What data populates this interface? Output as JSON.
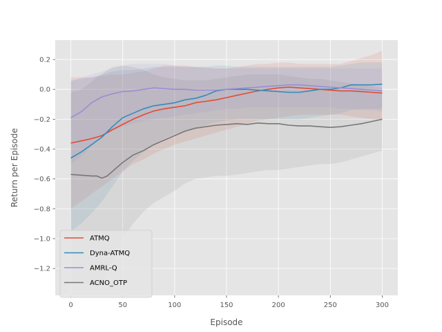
{
  "chart_data": {
    "type": "line",
    "title": "",
    "xlabel": "Episode",
    "ylabel": "Return per Episode",
    "xlim": [
      -15,
      315
    ],
    "ylim": [
      -1.38,
      0.33
    ],
    "xticks": [
      0,
      50,
      100,
      150,
      200,
      250,
      300
    ],
    "yticks": [
      -1.2,
      -1.0,
      -0.8,
      -0.6,
      -0.4,
      -0.2,
      0.0,
      0.2
    ],
    "ytick_labels": [
      "−1.2",
      "−1.0",
      "−0.8",
      "−0.6",
      "−0.4",
      "−0.2",
      "0.0",
      "0.2"
    ],
    "grid": true,
    "legend_position": "lower-left",
    "series": [
      {
        "name": "ATMQ",
        "color": "#E24A33",
        "x": [
          0,
          10,
          20,
          30,
          40,
          50,
          60,
          70,
          80,
          90,
          100,
          110,
          120,
          130,
          140,
          150,
          160,
          170,
          180,
          190,
          200,
          210,
          220,
          230,
          240,
          250,
          260,
          270,
          280,
          290,
          300
        ],
        "values": [
          -0.36,
          -0.345,
          -0.33,
          -0.31,
          -0.27,
          -0.235,
          -0.2,
          -0.17,
          -0.145,
          -0.13,
          -0.12,
          -0.11,
          -0.09,
          -0.08,
          -0.07,
          -0.055,
          -0.04,
          -0.025,
          -0.01,
          0.0,
          0.01,
          0.015,
          0.01,
          0.005,
          0.0,
          -0.005,
          -0.01,
          -0.01,
          -0.015,
          -0.02,
          -0.025
        ],
        "lower": [
          -0.8,
          -0.75,
          -0.7,
          -0.65,
          -0.6,
          -0.55,
          -0.5,
          -0.47,
          -0.43,
          -0.4,
          -0.37,
          -0.35,
          -0.33,
          -0.31,
          -0.29,
          -0.27,
          -0.25,
          -0.23,
          -0.21,
          -0.2,
          -0.19,
          -0.18,
          -0.17,
          -0.17,
          -0.17,
          -0.17,
          -0.17,
          -0.18,
          -0.19,
          -0.2,
          -0.21
        ],
        "upper": [
          0.08,
          0.08,
          0.08,
          0.09,
          0.1,
          0.1,
          0.11,
          0.12,
          0.14,
          0.16,
          0.16,
          0.16,
          0.15,
          0.15,
          0.14,
          0.14,
          0.15,
          0.16,
          0.17,
          0.17,
          0.18,
          0.18,
          0.17,
          0.17,
          0.17,
          0.17,
          0.17,
          0.19,
          0.21,
          0.23,
          0.26
        ]
      },
      {
        "name": "Dyna-ATMQ",
        "color": "#348ABD",
        "x": [
          0,
          10,
          20,
          30,
          40,
          50,
          60,
          70,
          80,
          90,
          100,
          110,
          120,
          130,
          140,
          150,
          160,
          170,
          180,
          190,
          200,
          210,
          220,
          230,
          240,
          250,
          260,
          270,
          280,
          290,
          300
        ],
        "values": [
          -0.46,
          -0.42,
          -0.37,
          -0.32,
          -0.25,
          -0.19,
          -0.16,
          -0.13,
          -0.11,
          -0.1,
          -0.09,
          -0.07,
          -0.06,
          -0.04,
          -0.01,
          0.0,
          0.0,
          0.0,
          -0.005,
          -0.01,
          -0.015,
          -0.02,
          -0.02,
          -0.01,
          0.0,
          0.0,
          0.01,
          0.03,
          0.03,
          0.03,
          0.035
        ],
        "lower": [
          -0.95,
          -0.9,
          -0.83,
          -0.75,
          -0.65,
          -0.55,
          -0.48,
          -0.42,
          -0.37,
          -0.33,
          -0.3,
          -0.28,
          -0.26,
          -0.24,
          -0.22,
          -0.21,
          -0.2,
          -0.2,
          -0.2,
          -0.2,
          -0.2,
          -0.2,
          -0.2,
          -0.19,
          -0.18,
          -0.17,
          -0.16,
          -0.14,
          -0.13,
          -0.13,
          -0.13
        ],
        "upper": [
          0.06,
          0.07,
          0.08,
          0.1,
          0.12,
          0.13,
          0.13,
          0.14,
          0.15,
          0.15,
          0.15,
          0.15,
          0.15,
          0.15,
          0.16,
          0.16,
          0.15,
          0.15,
          0.15,
          0.15,
          0.15,
          0.15,
          0.15,
          0.15,
          0.15,
          0.15,
          0.16,
          0.17,
          0.18,
          0.18,
          0.18
        ]
      },
      {
        "name": "AMRL-Q",
        "color": "#988ED5",
        "x": [
          0,
          10,
          20,
          30,
          40,
          50,
          60,
          70,
          80,
          90,
          100,
          110,
          120,
          130,
          140,
          150,
          160,
          170,
          180,
          190,
          200,
          210,
          220,
          230,
          240,
          250,
          260,
          270,
          280,
          290,
          300
        ],
        "values": [
          -0.19,
          -0.15,
          -0.09,
          -0.05,
          -0.03,
          -0.015,
          -0.01,
          0.0,
          0.01,
          0.005,
          0.0,
          0.0,
          -0.005,
          -0.005,
          -0.005,
          0.0,
          0.005,
          0.01,
          0.015,
          0.02,
          0.025,
          0.03,
          0.03,
          0.025,
          0.02,
          0.015,
          0.01,
          0.005,
          0.0,
          -0.005,
          -0.01
        ],
        "lower": [
          -0.5,
          -0.45,
          -0.38,
          -0.32,
          -0.28,
          -0.25,
          -0.23,
          -0.21,
          -0.2,
          -0.19,
          -0.18,
          -0.17,
          -0.16,
          -0.15,
          -0.14,
          -0.13,
          -0.13,
          -0.12,
          -0.12,
          -0.12,
          -0.12,
          -0.12,
          -0.12,
          -0.12,
          -0.12,
          -0.12,
          -0.13,
          -0.13,
          -0.14,
          -0.14,
          -0.15
        ],
        "upper": [
          0.05,
          0.08,
          0.1,
          0.12,
          0.14,
          0.16,
          0.17,
          0.17,
          0.17,
          0.17,
          0.16,
          0.15,
          0.15,
          0.14,
          0.14,
          0.14,
          0.14,
          0.14,
          0.14,
          0.14,
          0.14,
          0.14,
          0.14,
          0.14,
          0.14,
          0.14,
          0.14,
          0.14,
          0.14,
          0.14,
          0.14
        ]
      },
      {
        "name": "ACNO_OTP",
        "color": "#777777",
        "x": [
          0,
          10,
          20,
          25,
          30,
          35,
          40,
          50,
          60,
          70,
          80,
          90,
          100,
          110,
          120,
          130,
          140,
          150,
          160,
          170,
          180,
          190,
          200,
          210,
          220,
          230,
          240,
          250,
          260,
          270,
          280,
          290,
          300
        ],
        "values": [
          -0.57,
          -0.575,
          -0.58,
          -0.58,
          -0.595,
          -0.58,
          -0.55,
          -0.49,
          -0.44,
          -0.41,
          -0.37,
          -0.34,
          -0.31,
          -0.28,
          -0.26,
          -0.25,
          -0.24,
          -0.235,
          -0.23,
          -0.235,
          -0.225,
          -0.23,
          -0.23,
          -0.24,
          -0.245,
          -0.245,
          -0.25,
          -0.255,
          -0.25,
          -0.24,
          -0.23,
          -0.215,
          -0.2
        ],
        "lower": [
          -1.3,
          -1.3,
          -1.3,
          -1.3,
          -1.3,
          -1.25,
          -1.15,
          -1.0,
          -0.9,
          -0.82,
          -0.76,
          -0.72,
          -0.68,
          -0.63,
          -0.6,
          -0.59,
          -0.58,
          -0.58,
          -0.57,
          -0.56,
          -0.55,
          -0.54,
          -0.54,
          -0.53,
          -0.52,
          -0.51,
          -0.5,
          -0.5,
          -0.49,
          -0.47,
          -0.45,
          -0.43,
          -0.41
        ],
        "upper": [
          -0.02,
          0.0,
          0.05,
          0.08,
          0.1,
          0.13,
          0.15,
          0.16,
          0.15,
          0.13,
          0.1,
          0.08,
          0.07,
          0.06,
          0.06,
          0.06,
          0.07,
          0.08,
          0.09,
          0.1,
          0.1,
          0.1,
          0.1,
          0.09,
          0.08,
          0.07,
          0.07,
          0.06,
          0.05,
          0.04,
          0.03,
          0.02,
          0.01
        ]
      }
    ]
  },
  "colors": {
    "plot_background": "#E5E5E5",
    "grid": "#FFFFFF",
    "legend_background": "#E5E5E5",
    "legend_border": "#CCCCCC"
  }
}
